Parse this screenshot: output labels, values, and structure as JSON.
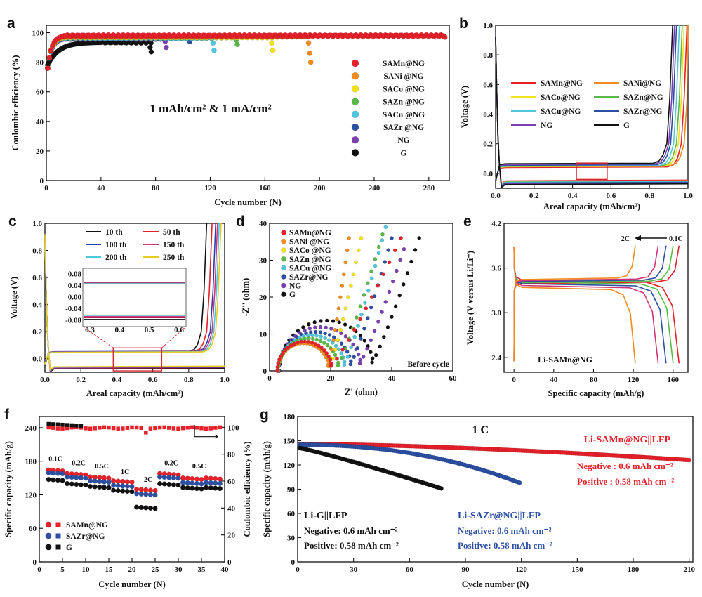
{
  "chart_data": [
    {
      "panel": "a",
      "type": "scatter",
      "xlabel": "Cycle number (N)",
      "ylabel": "Coulombic efficiency (%)",
      "xlim": [
        0,
        295
      ],
      "ylim": [
        0,
        105
      ],
      "xticks": [
        0,
        40,
        80,
        120,
        160,
        200,
        240,
        280
      ],
      "yticks": [
        0,
        20,
        40,
        60,
        80,
        100
      ],
      "annotation": "1 mAh/cm² & 1 mA/cm²",
      "series": [
        {
          "name": "SAMn@NG",
          "color": "#e8202a",
          "end": 292,
          "plateau": 98,
          "tail": [
            97.5,
            97
          ]
        },
        {
          "name": "SANi  @NG",
          "color": "#f28a1c",
          "end": 193,
          "plateau": 97.5,
          "tail": [
            93,
            86,
            80
          ]
        },
        {
          "name": "SACo @NG",
          "color": "#f2e21a",
          "end": 166,
          "plateau": 97,
          "tail": [
            93,
            88
          ]
        },
        {
          "name": "SAZn @NG",
          "color": "#58b947",
          "end": 140,
          "plateau": 97,
          "tail": [
            95,
            92
          ]
        },
        {
          "name": "SACu @NG",
          "color": "#4fc6dc",
          "end": 123,
          "plateau": 96.5,
          "tail": [
            93,
            88
          ]
        },
        {
          "name": "SAZr @NG",
          "color": "#2b4fa2",
          "end": 106,
          "plateau": 96.5,
          "tail": [
            94
          ]
        },
        {
          "name": "NG",
          "color": "#7b3fb2",
          "end": 88,
          "plateau": 96,
          "tail": [
            94,
            90
          ]
        },
        {
          "name": "G",
          "color": "#111111",
          "end": 77,
          "plateau": 93.5,
          "tail": [
            90,
            87
          ]
        }
      ]
    },
    {
      "panel": "b",
      "type": "line",
      "xlabel": "Areal capacity (mAh/cm²)",
      "ylabel": "Voltage (V)",
      "xlim": [
        0,
        1.0
      ],
      "ylim": [
        -0.1,
        1.0
      ],
      "xticks": [
        0.0,
        0.2,
        0.4,
        0.6,
        0.8,
        1.0
      ],
      "yticks": [
        0.0,
        0.2,
        0.4,
        0.6,
        0.8,
        1.0
      ],
      "series": [
        {
          "name": "SAMn@NG",
          "color": "#e8202a",
          "vneg": -0.05,
          "vpos": 0.04,
          "xs": 0.945
        },
        {
          "name": "SANi@NG",
          "color": "#f28a1c",
          "vneg": -0.062,
          "vpos": 0.05,
          "xs": 0.96
        },
        {
          "name": "SACo@NG",
          "color": "#f2e21a",
          "vneg": -0.055,
          "vpos": 0.045,
          "xs": 0.93
        },
        {
          "name": "SAZn@NG",
          "color": "#58b947",
          "vneg": -0.058,
          "vpos": 0.048,
          "xs": 0.92
        },
        {
          "name": "SACu@NG",
          "color": "#4fc6dc",
          "vneg": -0.06,
          "vpos": 0.05,
          "xs": 0.905
        },
        {
          "name": "SAZr@NG",
          "color": "#2b4fa2",
          "vneg": -0.065,
          "vpos": 0.055,
          "xs": 0.89
        },
        {
          "name": "NG",
          "color": "#7b3fb2",
          "vneg": -0.07,
          "vpos": 0.06,
          "xs": 0.88
        },
        {
          "name": "G",
          "color": "#111111",
          "vneg": -0.075,
          "vpos": 0.065,
          "xs": 0.87
        }
      ],
      "highlight_box": [
        0.42,
        0.58,
        -0.04,
        0.07
      ]
    },
    {
      "panel": "c",
      "type": "line",
      "xlabel": "Areal capacity (mAh/cm²)",
      "ylabel": "Voltage (V)",
      "xlim": [
        0,
        1.0
      ],
      "ylim": [
        -0.1,
        1.0
      ],
      "xticks": [
        0.0,
        0.2,
        0.4,
        0.6,
        0.8,
        1.0
      ],
      "yticks": [
        0.0,
        0.2,
        0.4,
        0.6,
        0.8,
        1.0
      ],
      "series": [
        {
          "name": "10 th",
          "color": "#111111",
          "vneg": -0.075,
          "vpos": 0.048,
          "xs": 0.85
        },
        {
          "name": "50 th",
          "color": "#e8202a",
          "vneg": -0.07,
          "vpos": 0.05,
          "xs": 0.88
        },
        {
          "name": "100 th",
          "color": "#2b3fb0",
          "vneg": -0.068,
          "vpos": 0.052,
          "xs": 0.9
        },
        {
          "name": "150 th",
          "color": "#d0337a",
          "vneg": -0.065,
          "vpos": 0.05,
          "xs": 0.91
        },
        {
          "name": "200 th",
          "color": "#4fc6dc",
          "vneg": -0.062,
          "vpos": 0.048,
          "xs": 0.92
        },
        {
          "name": "250 th",
          "color": "#e7cc22",
          "vneg": -0.06,
          "vpos": 0.046,
          "xs": 0.93
        }
      ],
      "inset": {
        "xticks": [
          "0.3",
          "0.4",
          "0.5",
          "0.6"
        ],
        "yticks": [
          "0.08",
          "0.04",
          "0.00",
          "-0.04",
          "-0.08"
        ]
      },
      "highlight_box": [
        0.38,
        0.65,
        -0.09,
        0.08
      ]
    },
    {
      "panel": "d",
      "type": "scatter",
      "xlabel": "Z' (ohm)",
      "ylabel": "-Z'' (ohm)",
      "xlim": [
        0,
        60
      ],
      "ylim": [
        0,
        40
      ],
      "xticks": [
        0,
        20,
        40,
        60
      ],
      "yticks": [
        0,
        10,
        20,
        30,
        40
      ],
      "annotation": "Before cycle",
      "series": [
        {
          "name": "SAMn@NG",
          "color": "#e8202a",
          "r0": 2.5,
          "rct": 18,
          "tx": 43,
          "ty": 36
        },
        {
          "name": "SANi @NG",
          "color": "#f28a1c",
          "r0": 2.6,
          "rct": 17,
          "tx": 26,
          "ty": 36
        },
        {
          "name": "SACo @NG",
          "color": "#f2e21a",
          "r0": 2.7,
          "rct": 17.5,
          "tx": 30,
          "ty": 36
        },
        {
          "name": "SAZn @NG",
          "color": "#58b947",
          "r0": 2.8,
          "rct": 20,
          "tx": 37,
          "ty": 37
        },
        {
          "name": "SACu @NG",
          "color": "#4fc6dc",
          "r0": 2.9,
          "rct": 22,
          "tx": 38,
          "ty": 39
        },
        {
          "name": "SAZr@NG",
          "color": "#2b4fa2",
          "r0": 3,
          "rct": 24,
          "tx": 40,
          "ty": 36
        },
        {
          "name": "NG",
          "color": "#7b3fb2",
          "r0": 3.1,
          "rct": 27,
          "tx": 44,
          "ty": 33
        },
        {
          "name": "G",
          "color": "#111111",
          "r0": 3.2,
          "rct": 31,
          "tx": 49,
          "ty": 36
        }
      ]
    },
    {
      "panel": "e",
      "type": "line",
      "xlabel": "Specific capacity (mAh/g)",
      "ylabel": "Voltage (V versus Li/Li⁺)",
      "xlim": [
        -10,
        175
      ],
      "ylim": [
        2.2,
        4.2
      ],
      "xticks": [
        0,
        40,
        80,
        120,
        160
      ],
      "yticks": [
        2.4,
        3.0,
        3.6,
        4.2
      ],
      "annotation": "Li-SAMn@NG",
      "arrow_from": "0.1C",
      "arrow_to": "2C",
      "series": [
        {
          "name": "0.1C",
          "color": "#e8202a",
          "cap": 166
        },
        {
          "name": "0.2C",
          "color": "#58b947",
          "cap": 160
        },
        {
          "name": "0.5C",
          "color": "#2b4fa2",
          "cap": 153
        },
        {
          "name": "1C",
          "color": "#d0337a",
          "cap": 145
        },
        {
          "name": "2C",
          "color": "#f28a1c",
          "cap": 122
        }
      ]
    },
    {
      "panel": "f",
      "type": "scatter",
      "xlabel": "Cycle number (N)",
      "ylabel": "Specific capacity (mAh/g)",
      "ylabel2": "Coulombic efficiency (%)",
      "xlim": [
        0,
        40
      ],
      "ylim": [
        0,
        260
      ],
      "ylim2": [
        0,
        108
      ],
      "xticks": [
        0,
        5,
        10,
        15,
        20,
        25,
        30,
        35,
        40
      ],
      "yticks": [
        0,
        60,
        120,
        180,
        240
      ],
      "yticks2": [
        0,
        20,
        40,
        60,
        80,
        100
      ],
      "rates": [
        "0.1C",
        "0.2C",
        "0.5C",
        "1C",
        "2C",
        "0.2C",
        "0.5C"
      ],
      "series": [
        {
          "name": "SAMn@NG",
          "color": "#e8202a",
          "caps": [
            165,
            158,
            152,
            145,
            130,
            158,
            150
          ]
        },
        {
          "name": "SAZr@NG",
          "color": "#2b4fa2",
          "caps": [
            160,
            152,
            145,
            137,
            122,
            152,
            142
          ]
        },
        {
          "name": "G",
          "color": "#111111",
          "caps": [
            148,
            140,
            135,
            128,
            98,
            140,
            133
          ]
        }
      ],
      "ce_samn": 99.5,
      "ce_g": 102.5
    },
    {
      "panel": "g",
      "type": "scatter",
      "xlabel": "Cycle number (N)",
      "ylabel": "Specific capacity (mAh/g)",
      "xlim": [
        0,
        212
      ],
      "ylim": [
        0,
        180
      ],
      "xticks": [
        0,
        30,
        60,
        90,
        120,
        150,
        180,
        210
      ],
      "yticks": [
        0,
        30,
        60,
        90,
        120,
        150,
        180
      ],
      "annotation": "1 C",
      "series": [
        {
          "name": "Li-SAMn@NG||LFP",
          "color": "#e8202a",
          "end": 210,
          "c0": 146,
          "c1": 126
        },
        {
          "name": "Li-SAZr@NG||LFP",
          "color": "#2b4fa2",
          "end": 119,
          "c0": 145,
          "c1": 98
        },
        {
          "name": "Li-G||LFP",
          "color": "#111111",
          "end": 77,
          "c0": 141,
          "c1": 91
        }
      ],
      "notes": {
        "samn": [
          "Negative : 0.6 mAh cm⁻²",
          "Positive : 0.58 mAh cm⁻²"
        ],
        "sazr": [
          "Negative: 0.6 mAh cm⁻²",
          "Positive: 0.58 mAh cm⁻²"
        ],
        "g": [
          "Negative: 0.6 mAh cm⁻²",
          "Positive: 0.58 mAh cm⁻²"
        ]
      }
    }
  ]
}
